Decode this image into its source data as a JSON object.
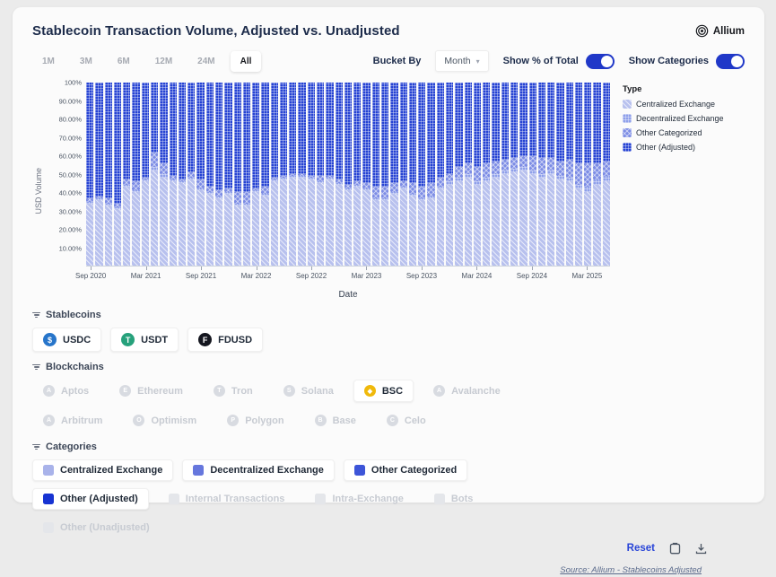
{
  "header": {
    "title": "Stablecoin Transaction Volume, Adjusted vs. Unadjusted",
    "brand": "Allium"
  },
  "toolbar": {
    "ranges": [
      "1M",
      "3M",
      "6M",
      "12M",
      "24M",
      "All"
    ],
    "active_range": "All",
    "bucket_by_label": "Bucket By",
    "bucket_value": "Month",
    "toggles": [
      {
        "label": "Show % of Total",
        "on": true
      },
      {
        "label": "Show Categories",
        "on": true
      }
    ],
    "accent_color": "#2038c8"
  },
  "chart_data": {
    "type": "bar",
    "stacked": true,
    "ylabel": "USD Volume",
    "xlabel": "Date",
    "ylim": [
      0,
      100
    ],
    "legend_title": "Type",
    "legend_position": "right",
    "y_ticks": [
      "100%",
      "90.00%",
      "80.00%",
      "70.00%",
      "60.00%",
      "50.00%",
      "40.00%",
      "30.00%",
      "20.00%",
      "10.00%"
    ],
    "x_ticks": [
      "Sep 2020",
      "Mar 2021",
      "Sep 2021",
      "Mar 2022",
      "Sep 2022",
      "Mar 2023",
      "Sep 2023",
      "Mar 2024",
      "Sep 2024",
      "Mar 2025"
    ],
    "categories": [
      "Sep 2020",
      "Oct 2020",
      "Nov 2020",
      "Dec 2020",
      "Jan 2021",
      "Feb 2021",
      "Mar 2021",
      "Apr 2021",
      "May 2021",
      "Jun 2021",
      "Jul 2021",
      "Aug 2021",
      "Sep 2021",
      "Oct 2021",
      "Nov 2021",
      "Dec 2021",
      "Jan 2022",
      "Feb 2022",
      "Mar 2022",
      "Apr 2022",
      "May 2022",
      "Jun 2022",
      "Jul 2022",
      "Aug 2022",
      "Sep 2022",
      "Oct 2022",
      "Nov 2022",
      "Dec 2022",
      "Jan 2023",
      "Feb 2023",
      "Mar 2023",
      "Apr 2023",
      "May 2023",
      "Jun 2023",
      "Jul 2023",
      "Aug 2023",
      "Sep 2023",
      "Oct 2023",
      "Nov 2023",
      "Dec 2023",
      "Jan 2024",
      "Feb 2024",
      "Mar 2024",
      "Apr 2024",
      "May 2024",
      "Jun 2024",
      "Jul 2024",
      "Aug 2024",
      "Sep 2024",
      "Oct 2024",
      "Nov 2024",
      "Dec 2024",
      "Jan 2025",
      "Feb 2025",
      "Mar 2025",
      "Apr 2025",
      "May 2025"
    ],
    "series": [
      {
        "name": "Centralized Exchange",
        "color": "#b8c1ee",
        "pattern": "diag",
        "values": [
          34,
          36,
          33,
          31,
          43,
          40,
          46,
          52,
          48,
          46,
          45,
          47,
          41,
          39,
          37,
          39,
          33,
          33,
          40,
          38,
          46,
          47,
          48,
          48,
          47,
          45,
          47,
          44,
          41,
          43,
          41,
          36,
          36,
          39,
          42,
          38,
          36,
          37,
          42,
          44,
          46,
          48,
          44,
          46,
          48,
          50,
          51,
          52,
          50,
          48,
          50,
          47,
          46,
          42,
          40,
          44,
          46
        ]
      },
      {
        "name": "Decentralized Exchange",
        "color": "#8fa0ea",
        "pattern": "grid",
        "values": [
          1,
          1,
          1,
          1,
          1,
          1,
          1,
          2,
          2,
          1,
          1,
          1,
          1,
          1,
          1,
          1,
          1,
          1,
          1,
          1,
          1,
          1,
          1,
          1,
          1,
          1,
          1,
          1,
          1,
          1,
          1,
          1,
          1,
          1,
          1,
          1,
          1,
          1,
          1,
          2,
          2,
          2,
          2,
          2,
          2,
          2,
          2,
          2,
          2,
          2,
          2,
          2,
          2,
          2,
          3,
          3,
          3
        ]
      },
      {
        "name": "Other Categorized",
        "color": "#7d8de5",
        "pattern": "cross",
        "values": [
          2,
          1,
          3,
          2,
          3,
          5,
          1,
          8,
          6,
          2,
          1,
          3,
          5,
          3,
          3,
          2,
          6,
          6,
          1,
          4,
          1,
          1,
          1,
          1,
          1,
          3,
          1,
          2,
          2,
          2,
          3,
          6,
          6,
          5,
          3,
          6,
          6,
          7,
          5,
          4,
          6,
          6,
          8,
          8,
          7,
          6,
          6,
          6,
          8,
          9,
          7,
          8,
          10,
          12,
          13,
          9,
          8
        ]
      },
      {
        "name": "Other (Adjusted)",
        "color": "#2643d3",
        "pattern": "grid",
        "values": [
          63,
          62,
          63,
          66,
          53,
          54,
          52,
          38,
          44,
          51,
          53,
          49,
          53,
          57,
          59,
          58,
          60,
          60,
          58,
          57,
          52,
          51,
          50,
          50,
          51,
          51,
          51,
          53,
          56,
          54,
          55,
          57,
          57,
          55,
          54,
          55,
          57,
          55,
          52,
          50,
          46,
          44,
          46,
          44,
          43,
          42,
          41,
          40,
          40,
          41,
          41,
          43,
          42,
          44,
          44,
          44,
          43
        ]
      }
    ]
  },
  "filters": {
    "stablecoins": {
      "label": "Stablecoins",
      "chips": [
        {
          "name": "USDC",
          "glyph": "$",
          "color": "#2775ca",
          "active": true
        },
        {
          "name": "USDT",
          "glyph": "T",
          "color": "#26a17b",
          "active": true
        },
        {
          "name": "FDUSD",
          "glyph": "F",
          "color": "#14161f",
          "active": true
        }
      ]
    },
    "blockchains": {
      "label": "Blockchains",
      "rows": [
        [
          {
            "name": "Aptos",
            "active": false
          },
          {
            "name": "Ethereum",
            "active": false
          },
          {
            "name": "Tron",
            "active": false
          },
          {
            "name": "Solana",
            "active": false
          },
          {
            "name": "BSC",
            "active": true,
            "color": "#f0b90b",
            "glyph": "◆"
          },
          {
            "name": "Avalanche",
            "active": false
          }
        ],
        [
          {
            "name": "Arbitrum",
            "active": false
          },
          {
            "name": "Optimism",
            "active": false
          },
          {
            "name": "Polygon",
            "active": false
          },
          {
            "name": "Base",
            "active": false
          },
          {
            "name": "Celo",
            "active": false
          }
        ]
      ]
    },
    "categories": {
      "label": "Categories",
      "rows": [
        [
          {
            "name": "Centralized Exchange",
            "swatch": "#a9b3ea",
            "active": true
          },
          {
            "name": "Decentralized Exchange",
            "swatch": "#6677dd",
            "active": true
          },
          {
            "name": "Other Categorized",
            "swatch": "#3d55d8",
            "active": true
          }
        ],
        [
          {
            "name": "Other (Adjusted)",
            "swatch": "#1733d2",
            "active": true
          },
          {
            "name": "Internal Transactions",
            "active": false
          },
          {
            "name": "Intra-Exchange",
            "active": false
          },
          {
            "name": "Bots",
            "active": false
          }
        ],
        [
          {
            "name": "Other (Unadjusted)",
            "active": false
          }
        ]
      ]
    }
  },
  "footer": {
    "reset_label": "Reset",
    "source": "Source: Allium - Stablecoins Adjusted"
  }
}
